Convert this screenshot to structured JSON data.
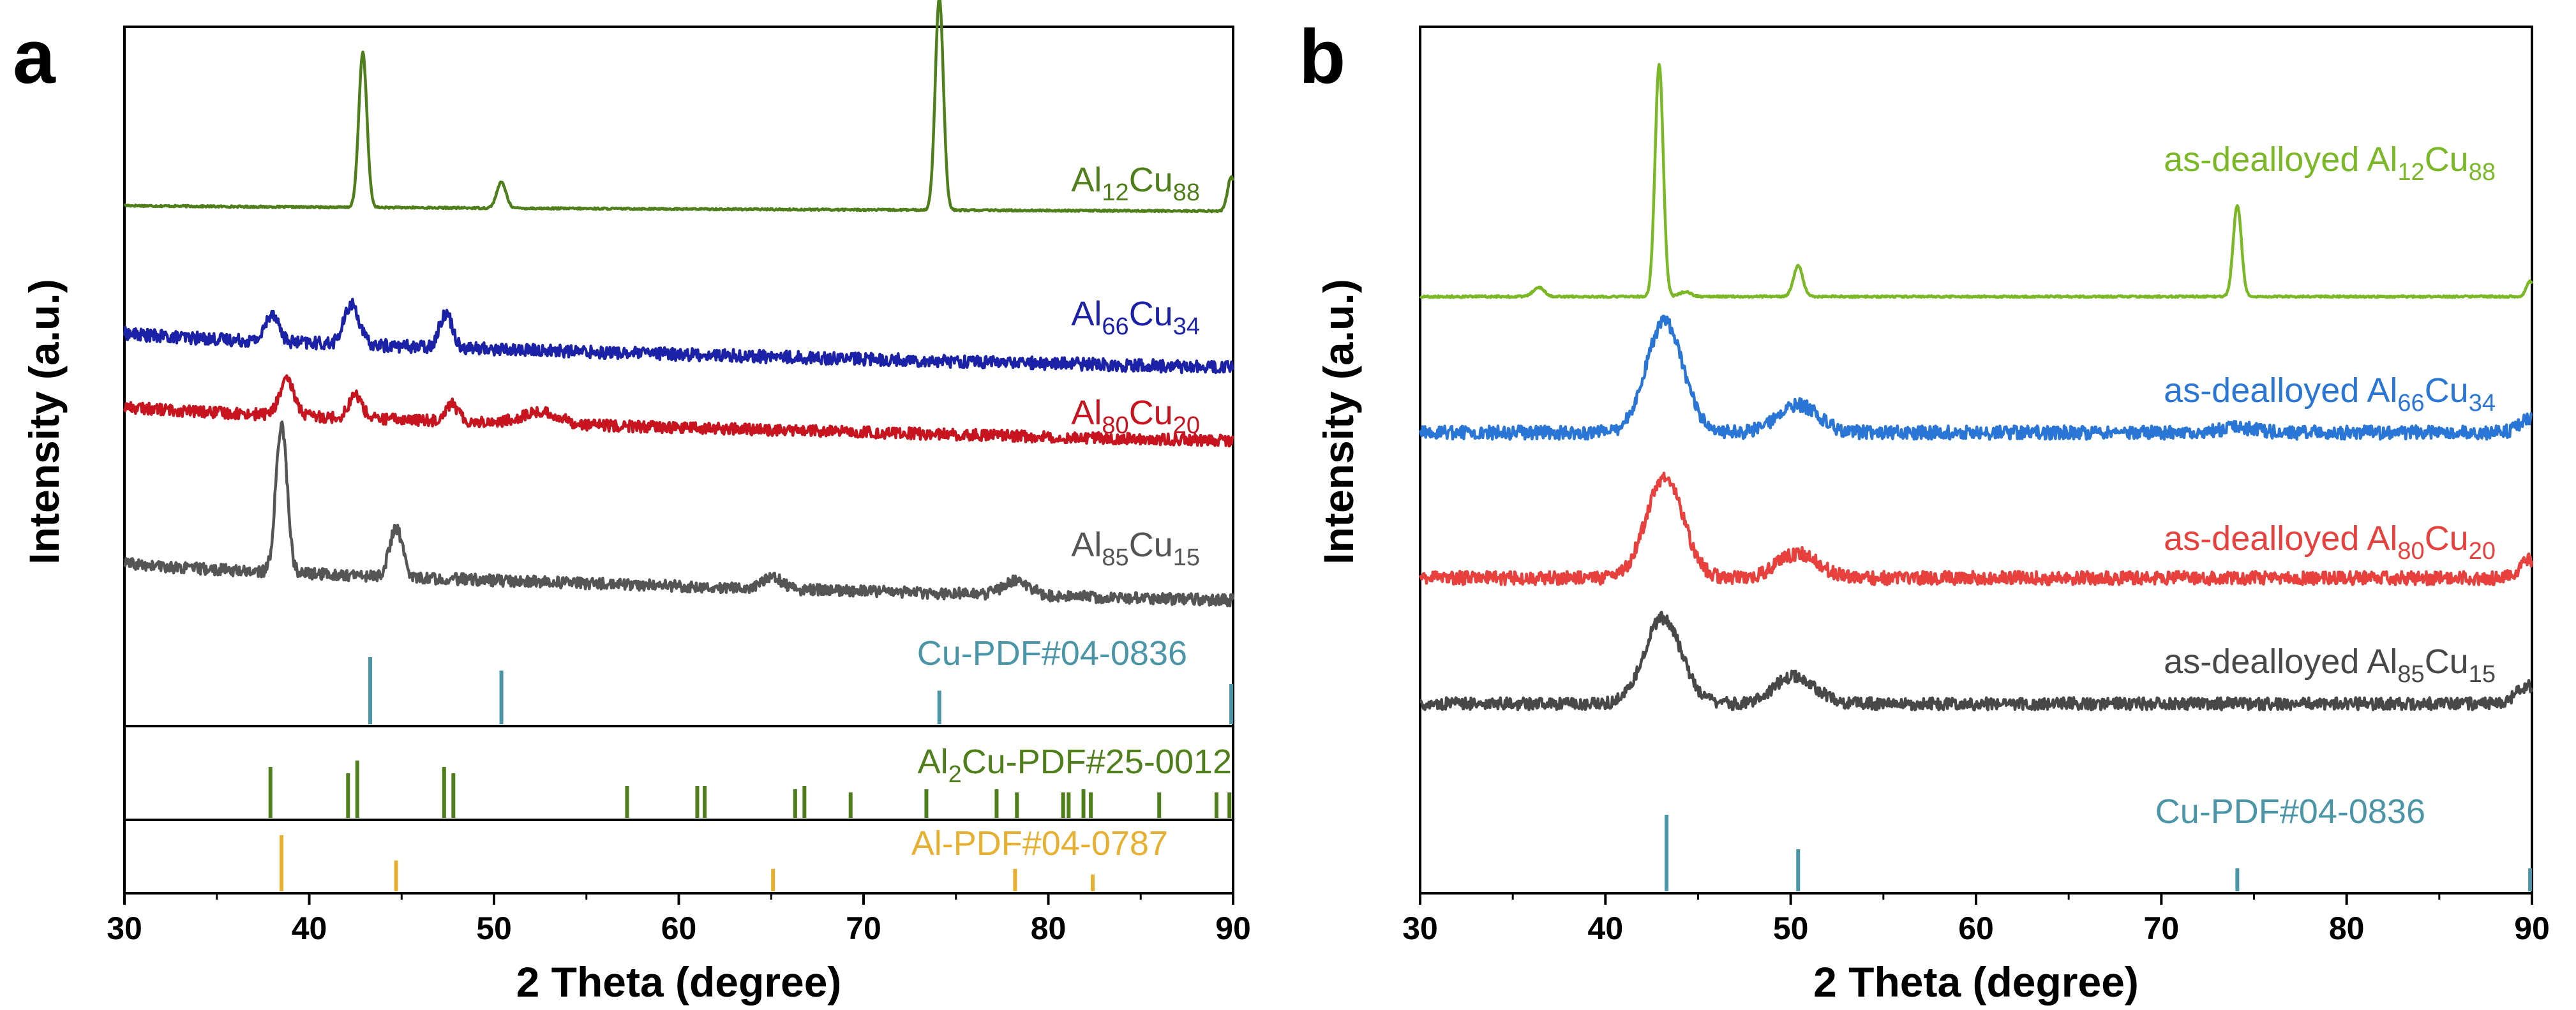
{
  "chart_data": [
    {
      "panel": "a",
      "type": "line",
      "xlabel": "2 Theta (degree)",
      "ylabel": "Intensity (a.u.)",
      "xlim": [
        30,
        90
      ],
      "xticks": [
        30,
        40,
        50,
        60,
        70,
        80,
        90
      ],
      "series": [
        {
          "name": "Al12Cu88",
          "label": {
            "base1": "Al",
            "sub1": "12",
            "base2": "Cu",
            "sub2": "88"
          },
          "color": "#4f7f1a",
          "baseline_start": 0.4,
          "baseline_end": 0.2,
          "noise": 0.03,
          "peaks": [
            {
              "x": 42.9,
              "h": 5.4,
              "w": 0.22
            },
            {
              "x": 50.4,
              "h": 0.9,
              "w": 0.25
            },
            {
              "x": 74.1,
              "h": 7.4,
              "w": 0.22
            },
            {
              "x": 89.9,
              "h": 1.2,
              "w": 0.2
            }
          ]
        },
        {
          "name": "Al66Cu34",
          "label": {
            "base1": "Al",
            "sub1": "66",
            "base2": "Cu",
            "sub2": "34"
          },
          "color": "#1c22a8",
          "baseline_start": 1.4,
          "baseline_end": 0.2,
          "noise": 0.22,
          "peaks": [
            {
              "x": 38.0,
              "h": 1.0,
              "w": 0.35
            },
            {
              "x": 42.3,
              "h": 1.4,
              "w": 0.4
            },
            {
              "x": 47.4,
              "h": 1.2,
              "w": 0.35
            }
          ]
        },
        {
          "name": "Al80Cu20",
          "label": {
            "base1": "Al",
            "sub1": "80",
            "base2": "Cu",
            "sub2": "20"
          },
          "color": "#c8141e",
          "baseline_start": 1.4,
          "baseline_end": 0.2,
          "noise": 0.2,
          "peaks": [
            {
              "x": 38.8,
              "h": 1.2,
              "w": 0.4
            },
            {
              "x": 42.5,
              "h": 0.8,
              "w": 0.35
            },
            {
              "x": 47.7,
              "h": 0.6,
              "w": 0.35
            },
            {
              "x": 52.5,
              "h": 0.4,
              "w": 1.0
            }
          ]
        },
        {
          "name": "Al85Cu15",
          "label": {
            "base1": "Al",
            "sub1": "85",
            "base2": "Cu",
            "sub2": "15"
          },
          "color": "#555555",
          "baseline_start": 1.5,
          "baseline_end": 0.2,
          "noise": 0.2,
          "peaks": [
            {
              "x": 38.5,
              "h": 5.2,
              "w": 0.3
            },
            {
              "x": 44.7,
              "h": 1.7,
              "w": 0.35
            },
            {
              "x": 65.1,
              "h": 0.4,
              "w": 0.5
            },
            {
              "x": 78.3,
              "h": 0.5,
              "w": 0.7
            }
          ]
        }
      ],
      "references": [
        {
          "name": "Cu-PDF#04-0836",
          "label": "Cu-PDF#04-0836",
          "color": "#4a95a8",
          "positions": [
            43.3,
            50.4,
            74.1,
            89.9
          ],
          "heights": [
            1.0,
            0.8,
            0.5,
            0.6
          ]
        },
        {
          "name": "Al2Cu-PDF#25-0012",
          "label": {
            "base1": "Al",
            "sub1": "2",
            "rest": "Cu-PDF#25-0012"
          },
          "color": "#4f7f1a",
          "positions": [
            37.9,
            42.1,
            42.6,
            47.3,
            47.8,
            57.2,
            61.0,
            61.4,
            66.3,
            66.8,
            69.3,
            73.4,
            77.2,
            78.3,
            80.8,
            81.1,
            81.9,
            82.3,
            86.0,
            89.1,
            89.8
          ],
          "heights": [
            0.8,
            0.7,
            0.9,
            0.8,
            0.7,
            0.5,
            0.5,
            0.5,
            0.45,
            0.5,
            0.4,
            0.45,
            0.45,
            0.4,
            0.4,
            0.4,
            0.45,
            0.4,
            0.4,
            0.4,
            0.4
          ]
        },
        {
          "name": "Al-PDF#04-0787",
          "label": "Al-PDF#04-0787",
          "color": "#e8b030",
          "positions": [
            38.5,
            44.7,
            65.1,
            78.2,
            82.4
          ],
          "heights": [
            1.0,
            0.55,
            0.4,
            0.4,
            0.3
          ]
        }
      ]
    },
    {
      "panel": "b",
      "type": "line",
      "xlabel": "2 Theta (degree)",
      "ylabel": "Intensity (a.u.)",
      "xlim": [
        30,
        90
      ],
      "xticks": [
        30,
        40,
        50,
        60,
        70,
        80,
        90
      ],
      "series": [
        {
          "name": "as-dealloyed Al12Cu88",
          "label": {
            "prefix": "as-dealloyed ",
            "base1": "Al",
            "sub1": "12",
            "base2": "Cu",
            "sub2": "88"
          },
          "color": "#7ab826",
          "baseline_start": 0.15,
          "baseline_end": 0.15,
          "noise": 0.03,
          "peaks": [
            {
              "x": 36.4,
              "h": 0.3,
              "w": 0.3
            },
            {
              "x": 42.9,
              "h": 7.6,
              "w": 0.22
            },
            {
              "x": 44.3,
              "h": 0.15,
              "w": 0.3
            },
            {
              "x": 50.4,
              "h": 1.0,
              "w": 0.25
            },
            {
              "x": 74.1,
              "h": 3.0,
              "w": 0.22
            },
            {
              "x": 89.9,
              "h": 0.5,
              "w": 0.2
            }
          ]
        },
        {
          "name": "as-dealloyed Al66Cu34",
          "label": {
            "prefix": "as-dealloyed ",
            "base1": "Al",
            "sub1": "66",
            "base2": "Cu",
            "sub2": "34"
          },
          "color": "#2a76d6",
          "baseline_start": 0.25,
          "baseline_end": 0.25,
          "noise": 0.22,
          "peaks": [
            {
              "x": 43.2,
              "h": 3.6,
              "w": 1.0
            },
            {
              "x": 50.4,
              "h": 0.9,
              "w": 1.1
            },
            {
              "x": 74.1,
              "h": 0.15,
              "w": 1.0
            },
            {
              "x": 90.0,
              "h": 0.5,
              "w": 0.6
            }
          ]
        },
        {
          "name": "as-dealloyed Al80Cu20",
          "label": {
            "prefix": "as-dealloyed ",
            "base1": "Al",
            "sub1": "80",
            "base2": "Cu",
            "sub2": "20"
          },
          "color": "#e8403c",
          "baseline_start": 0.25,
          "baseline_end": 0.25,
          "noise": 0.22,
          "peaks": [
            {
              "x": 43.2,
              "h": 3.3,
              "w": 1.0
            },
            {
              "x": 50.4,
              "h": 0.8,
              "w": 1.1
            },
            {
              "x": 90.0,
              "h": 0.6,
              "w": 0.6
            }
          ]
        },
        {
          "name": "as-dealloyed Al85Cu15",
          "label": {
            "prefix": "as-dealloyed ",
            "base1": "Al",
            "sub1": "85",
            "base2": "Cu",
            "sub2": "15"
          },
          "color": "#484848",
          "baseline_start": 0.25,
          "baseline_end": 0.25,
          "noise": 0.2,
          "peaks": [
            {
              "x": 43.1,
              "h": 2.8,
              "w": 1.0
            },
            {
              "x": 50.2,
              "h": 0.9,
              "w": 1.1
            },
            {
              "x": 89.8,
              "h": 0.6,
              "w": 0.6
            }
          ]
        }
      ],
      "references": [
        {
          "name": "Cu-PDF#04-0836",
          "label": "Cu-PDF#04-0836",
          "color": "#4a95a8",
          "positions": [
            43.3,
            50.4,
            74.1,
            89.9
          ],
          "heights": [
            1.0,
            0.55,
            0.3,
            0.3
          ]
        }
      ]
    }
  ]
}
